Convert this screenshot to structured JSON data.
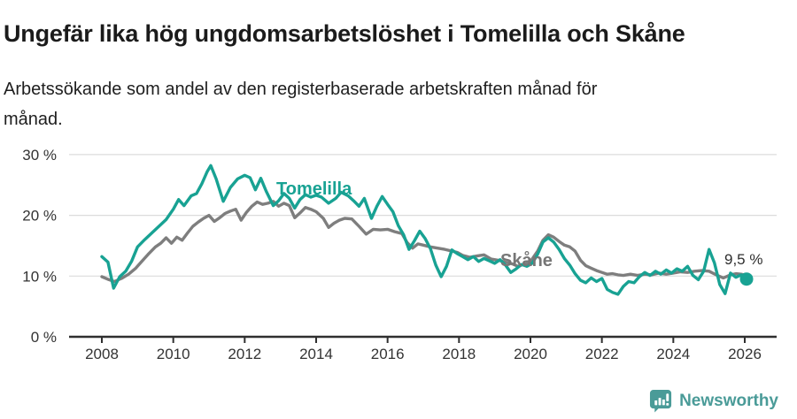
{
  "header": {
    "title": "Ungefär lika hög ungdomsarbetslöshet i Tomelilla och Skåne",
    "subtitle": "Arbetssökande som andel av den registerbaserade arbetskraften månad för månad."
  },
  "chart_data": {
    "type": "line",
    "title": "Ungefär lika hög ungdomsarbetslöshet i Tomelilla och Skåne",
    "subtitle": "Arbetssökande som andel av den registerbaserade arbetskraften månad för månad.",
    "grid": true,
    "x_axis": {
      "ticks": [
        2008,
        2010,
        2012,
        2014,
        2016,
        2018,
        2020,
        2022,
        2024,
        2026
      ],
      "range": [
        2007.8,
        2026.9
      ]
    },
    "y_axis": {
      "unit": "%",
      "ticks": [
        0,
        10,
        20,
        30
      ],
      "tick_labels": [
        "0 %",
        "10 %",
        "20 %",
        "30 %"
      ],
      "range": [
        0,
        30
      ]
    },
    "series": [
      {
        "id": "skane",
        "name": "Skåne",
        "color": "#7e7e7e",
        "points": [
          [
            2008.0,
            9.9
          ],
          [
            2008.2,
            9.4
          ],
          [
            2008.35,
            9.1
          ],
          [
            2008.55,
            9.6
          ],
          [
            2008.75,
            10.3
          ],
          [
            2008.95,
            11.3
          ],
          [
            2009.1,
            12.3
          ],
          [
            2009.3,
            13.6
          ],
          [
            2009.5,
            14.8
          ],
          [
            2009.65,
            15.4
          ],
          [
            2009.8,
            16.3
          ],
          [
            2009.95,
            15.4
          ],
          [
            2010.1,
            16.4
          ],
          [
            2010.25,
            15.9
          ],
          [
            2010.4,
            17.1
          ],
          [
            2010.55,
            18.2
          ],
          [
            2010.7,
            18.9
          ],
          [
            2010.85,
            19.5
          ],
          [
            2011.0,
            20.0
          ],
          [
            2011.15,
            19.0
          ],
          [
            2011.3,
            19.6
          ],
          [
            2011.45,
            20.3
          ],
          [
            2011.6,
            20.7
          ],
          [
            2011.75,
            21.0
          ],
          [
            2011.9,
            19.2
          ],
          [
            2012.05,
            20.5
          ],
          [
            2012.2,
            21.5
          ],
          [
            2012.35,
            22.2
          ],
          [
            2012.5,
            21.8
          ],
          [
            2012.65,
            22.0
          ],
          [
            2012.8,
            22.3
          ],
          [
            2012.95,
            21.5
          ],
          [
            2013.1,
            22.0
          ],
          [
            2013.25,
            21.6
          ],
          [
            2013.4,
            19.6
          ],
          [
            2013.55,
            20.4
          ],
          [
            2013.7,
            21.3
          ],
          [
            2013.85,
            21.0
          ],
          [
            2014.0,
            20.6
          ],
          [
            2014.2,
            19.5
          ],
          [
            2014.35,
            18.0
          ],
          [
            2014.5,
            18.7
          ],
          [
            2014.65,
            19.2
          ],
          [
            2014.8,
            19.5
          ],
          [
            2015.0,
            19.4
          ],
          [
            2015.2,
            18.2
          ],
          [
            2015.4,
            16.9
          ],
          [
            2015.6,
            17.7
          ],
          [
            2015.8,
            17.6
          ],
          [
            2016.0,
            17.7
          ],
          [
            2016.2,
            17.3
          ],
          [
            2016.4,
            17.0
          ],
          [
            2016.55,
            15.5
          ],
          [
            2016.7,
            14.6
          ],
          [
            2016.85,
            15.3
          ],
          [
            2017.0,
            15.1
          ],
          [
            2017.2,
            14.8
          ],
          [
            2017.4,
            14.6
          ],
          [
            2017.6,
            14.4
          ],
          [
            2017.8,
            14.1
          ],
          [
            2017.95,
            13.9
          ],
          [
            2018.1,
            13.4
          ],
          [
            2018.3,
            13.1
          ],
          [
            2018.5,
            13.3
          ],
          [
            2018.7,
            13.5
          ],
          [
            2018.9,
            12.8
          ],
          [
            2019.1,
            12.6
          ],
          [
            2019.3,
            12.3
          ],
          [
            2019.5,
            12.0
          ],
          [
            2019.65,
            11.6
          ],
          [
            2019.8,
            11.9
          ],
          [
            2020.0,
            12.4
          ],
          [
            2020.2,
            14.1
          ],
          [
            2020.35,
            15.9
          ],
          [
            2020.5,
            16.8
          ],
          [
            2020.65,
            16.4
          ],
          [
            2020.8,
            15.7
          ],
          [
            2020.95,
            15.1
          ],
          [
            2021.1,
            14.8
          ],
          [
            2021.25,
            14.1
          ],
          [
            2021.4,
            12.6
          ],
          [
            2021.55,
            11.7
          ],
          [
            2021.7,
            11.3
          ],
          [
            2021.85,
            10.9
          ],
          [
            2022.0,
            10.6
          ],
          [
            2022.15,
            10.3
          ],
          [
            2022.3,
            10.4
          ],
          [
            2022.45,
            10.2
          ],
          [
            2022.6,
            10.1
          ],
          [
            2022.8,
            10.3
          ],
          [
            2023.0,
            10.1
          ],
          [
            2023.2,
            10.3
          ],
          [
            2023.4,
            10.2
          ],
          [
            2023.6,
            10.5
          ],
          [
            2023.8,
            10.3
          ],
          [
            2024.0,
            10.5
          ],
          [
            2024.2,
            10.7
          ],
          [
            2024.4,
            10.6
          ],
          [
            2024.6,
            10.8
          ],
          [
            2024.8,
            10.9
          ],
          [
            2025.0,
            10.8
          ],
          [
            2025.2,
            10.2
          ],
          [
            2025.4,
            9.7
          ],
          [
            2025.6,
            10.2
          ],
          [
            2025.75,
            10.4
          ],
          [
            2025.9,
            10.3
          ],
          [
            2026.05,
            10.1
          ]
        ]
      },
      {
        "id": "tomelilla",
        "name": "Tomelilla",
        "color": "#18a293",
        "points": [
          [
            2008.0,
            13.2
          ],
          [
            2008.17,
            12.3
          ],
          [
            2008.33,
            8.0
          ],
          [
            2008.5,
            9.9
          ],
          [
            2008.67,
            10.8
          ],
          [
            2008.83,
            12.4
          ],
          [
            2009.0,
            14.8
          ],
          [
            2009.2,
            16.0
          ],
          [
            2009.4,
            17.1
          ],
          [
            2009.6,
            18.2
          ],
          [
            2009.8,
            19.3
          ],
          [
            2010.0,
            21.0
          ],
          [
            2010.15,
            22.6
          ],
          [
            2010.3,
            21.6
          ],
          [
            2010.5,
            23.2
          ],
          [
            2010.65,
            23.6
          ],
          [
            2010.8,
            25.2
          ],
          [
            2010.95,
            27.2
          ],
          [
            2011.05,
            28.2
          ],
          [
            2011.2,
            26.0
          ],
          [
            2011.4,
            22.3
          ],
          [
            2011.6,
            24.6
          ],
          [
            2011.8,
            26.0
          ],
          [
            2012.0,
            26.6
          ],
          [
            2012.15,
            26.2
          ],
          [
            2012.3,
            24.2
          ],
          [
            2012.45,
            26.1
          ],
          [
            2012.6,
            24.0
          ],
          [
            2012.8,
            21.6
          ],
          [
            2012.95,
            22.4
          ],
          [
            2013.1,
            23.6
          ],
          [
            2013.25,
            22.8
          ],
          [
            2013.4,
            21.2
          ],
          [
            2013.55,
            22.6
          ],
          [
            2013.7,
            23.4
          ],
          [
            2013.85,
            23.0
          ],
          [
            2014.0,
            23.3
          ],
          [
            2014.15,
            23.0
          ],
          [
            2014.35,
            22.0
          ],
          [
            2014.55,
            22.8
          ],
          [
            2014.7,
            23.8
          ],
          [
            2014.9,
            23.2
          ],
          [
            2015.05,
            22.4
          ],
          [
            2015.2,
            21.5
          ],
          [
            2015.35,
            22.8
          ],
          [
            2015.55,
            19.5
          ],
          [
            2015.7,
            21.5
          ],
          [
            2015.85,
            23.1
          ],
          [
            2016.0,
            21.8
          ],
          [
            2016.15,
            20.6
          ],
          [
            2016.3,
            18.3
          ],
          [
            2016.45,
            16.8
          ],
          [
            2016.6,
            14.4
          ],
          [
            2016.75,
            15.8
          ],
          [
            2016.9,
            17.4
          ],
          [
            2017.05,
            16.2
          ],
          [
            2017.2,
            14.5
          ],
          [
            2017.35,
            11.8
          ],
          [
            2017.5,
            9.9
          ],
          [
            2017.65,
            11.6
          ],
          [
            2017.8,
            14.3
          ],
          [
            2017.95,
            13.7
          ],
          [
            2018.1,
            13.2
          ],
          [
            2018.25,
            12.7
          ],
          [
            2018.4,
            13.2
          ],
          [
            2018.55,
            12.4
          ],
          [
            2018.7,
            12.9
          ],
          [
            2018.85,
            12.5
          ],
          [
            2019.0,
            12.1
          ],
          [
            2019.15,
            12.7
          ],
          [
            2019.3,
            11.8
          ],
          [
            2019.45,
            10.6
          ],
          [
            2019.6,
            11.2
          ],
          [
            2019.75,
            11.9
          ],
          [
            2019.9,
            11.6
          ],
          [
            2020.05,
            12.1
          ],
          [
            2020.2,
            13.6
          ],
          [
            2020.35,
            15.6
          ],
          [
            2020.5,
            16.3
          ],
          [
            2020.65,
            15.6
          ],
          [
            2020.8,
            14.4
          ],
          [
            2020.95,
            12.9
          ],
          [
            2021.1,
            11.8
          ],
          [
            2021.25,
            10.4
          ],
          [
            2021.4,
            9.3
          ],
          [
            2021.55,
            8.9
          ],
          [
            2021.7,
            9.7
          ],
          [
            2021.85,
            9.1
          ],
          [
            2022.0,
            9.6
          ],
          [
            2022.15,
            7.8
          ],
          [
            2022.3,
            7.3
          ],
          [
            2022.45,
            7.0
          ],
          [
            2022.6,
            8.3
          ],
          [
            2022.75,
            9.1
          ],
          [
            2022.9,
            8.9
          ],
          [
            2023.05,
            9.9
          ],
          [
            2023.2,
            10.6
          ],
          [
            2023.35,
            10.1
          ],
          [
            2023.5,
            10.8
          ],
          [
            2023.65,
            10.3
          ],
          [
            2023.8,
            11.0
          ],
          [
            2023.95,
            10.5
          ],
          [
            2024.1,
            11.2
          ],
          [
            2024.25,
            10.8
          ],
          [
            2024.4,
            11.6
          ],
          [
            2024.55,
            10.1
          ],
          [
            2024.7,
            9.4
          ],
          [
            2024.85,
            10.8
          ],
          [
            2025.0,
            14.4
          ],
          [
            2025.15,
            12.2
          ],
          [
            2025.3,
            8.6
          ],
          [
            2025.45,
            7.1
          ],
          [
            2025.6,
            10.5
          ],
          [
            2025.75,
            9.8
          ],
          [
            2025.9,
            10.2
          ],
          [
            2026.05,
            9.5
          ]
        ]
      }
    ],
    "series_labels_in_plot": true,
    "legend_position": "inline-labels",
    "end_annotation": {
      "text": "9,5 %",
      "value": 9.5,
      "series": "Tomelilla"
    }
  },
  "footer": {
    "brand": "Newsworthy",
    "brand_color": "#4a9b98",
    "logo_icon": "speech-bubble-bar-chart-exclamation-icon"
  }
}
